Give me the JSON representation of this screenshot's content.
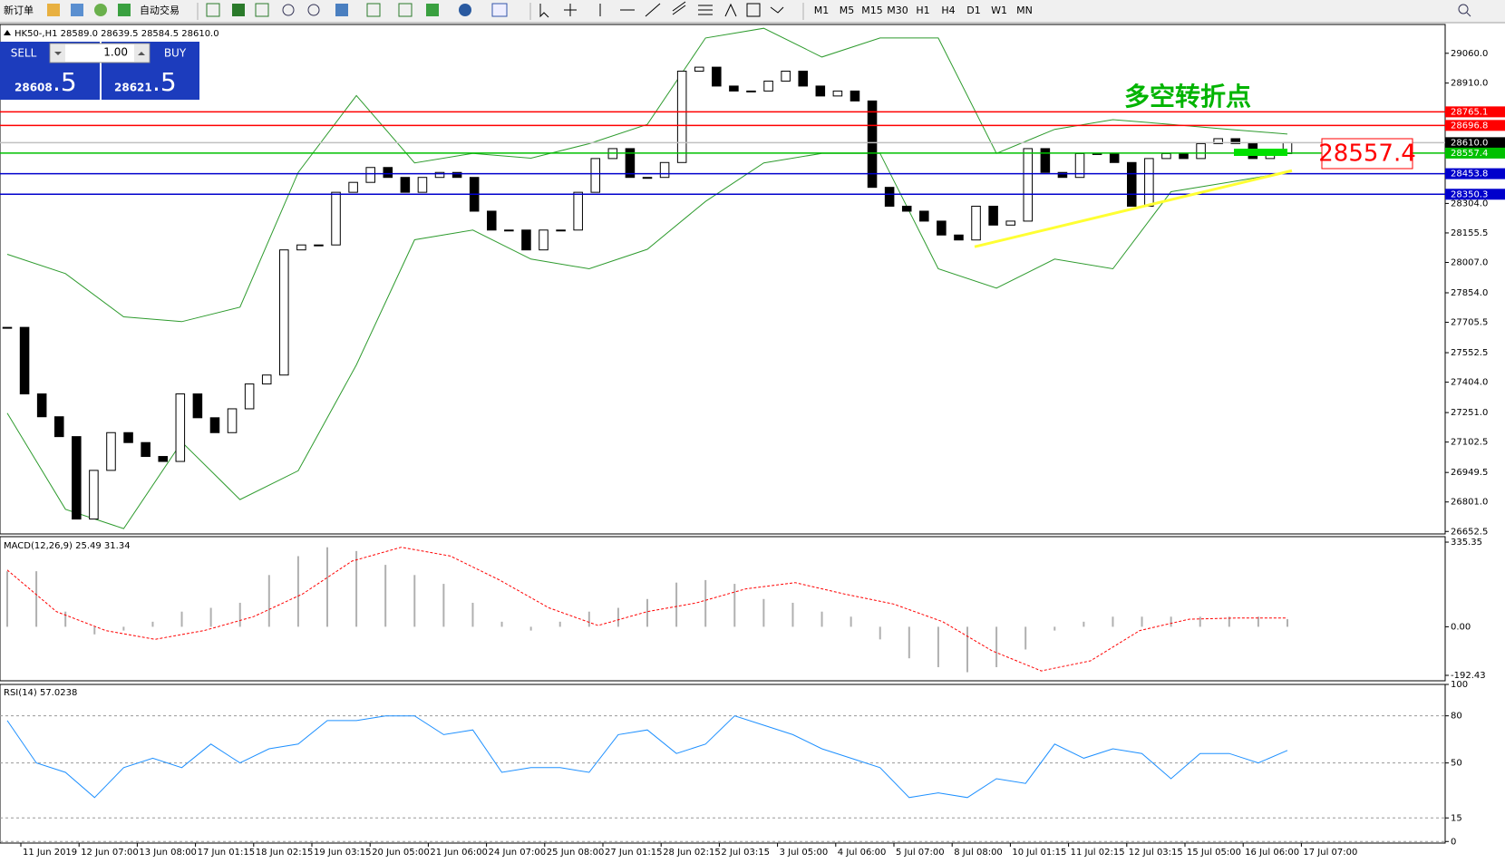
{
  "toolbar": {
    "new_order": "新订单",
    "auto_trade": "自动交易",
    "timeframes": [
      "M1",
      "M5",
      "M15",
      "M30",
      "H1",
      "H4",
      "D1",
      "W1",
      "MN"
    ]
  },
  "trade_panel": {
    "sell": "SELL",
    "buy": "BUY",
    "lot": "1.00",
    "sell_price": "28608",
    "sell_fraction": ".5",
    "buy_price": "28621",
    "buy_fraction": ".5"
  },
  "chart_data": [
    {
      "type": "candlestick",
      "title": "HK50-,H1  28589.0 28639.5 28584.5 28610.0",
      "closes": [
        27680,
        27345,
        27230,
        27130,
        26715,
        26960,
        27150,
        27100,
        27030,
        27005,
        27345,
        27225,
        27150,
        27270,
        27395,
        27440,
        28070,
        28095,
        28095,
        28360,
        28410,
        28485,
        28435,
        28360,
        28435,
        28460,
        28435,
        28265,
        28170,
        28170,
        28070,
        28170,
        28170,
        28360,
        28530,
        28580,
        28435,
        28435,
        28510,
        28970,
        28990,
        28895,
        28870,
        28870,
        28920,
        28970,
        28895,
        28845,
        28870,
        28820,
        28385,
        28290,
        28265,
        28215,
        28145,
        28120,
        28290,
        28195,
        28215,
        28580,
        28460,
        28435,
        28555,
        28555,
        28510,
        28290,
        28530,
        28555,
        28530,
        28605,
        28630,
        28605,
        28530,
        28555,
        28610
      ],
      "upper_band": [
        28048,
        27951,
        27733,
        27709,
        27782,
        28460,
        28847,
        28508,
        28556,
        28532,
        28605,
        28702,
        29137,
        29186,
        29041,
        29137,
        29137,
        28556,
        28677,
        28726,
        28702,
        28677,
        28653
      ],
      "lower_band": [
        27248,
        26764,
        26667,
        27103,
        26813,
        26958,
        27491,
        28121,
        28170,
        28024,
        27975,
        28073,
        28314,
        28508,
        28556,
        28556,
        27975,
        27878,
        28024,
        27975,
        28363,
        28411,
        28460
      ],
      "band_color": "#2e9b2e",
      "up_color": "#ffffff",
      "down_color": "#000000",
      "ylim": [
        26640,
        29205
      ],
      "yticks": [
        {
          "value": 29060,
          "label": "29060.0"
        },
        {
          "value": 28910,
          "label": "28910.0"
        },
        {
          "value": 28304,
          "label": "28304.0"
        },
        28155.5,
        {
          "value": 28007,
          "label": "28007.0"
        },
        {
          "value": 27854,
          "label": "27854.0"
        },
        27705.5,
        27552.5,
        {
          "value": 27404,
          "label": "27404.0"
        },
        {
          "value": 27251,
          "label": "27251.0"
        },
        27102.5,
        26949.5,
        {
          "value": 26801,
          "label": "26801.0"
        },
        26652.5
      ],
      "levels": [
        {
          "value": 28765.1,
          "color": "#ff0000"
        },
        {
          "value": 28696.8,
          "color": "#ff0000"
        },
        {
          "value": {
            "value": 28610,
            "label": "28610.0"
          },
          "color": "#000000"
        },
        {
          "value": 28557.4,
          "color": "#00c000"
        },
        {
          "value": 28453.8,
          "color": "#0000cc"
        },
        {
          "value": 28350.3,
          "color": "#0000cc"
        }
      ],
      "annotation": "多空转折点",
      "callout": 28557.4,
      "trendline": [
        28086,
        28469
      ],
      "trendline_color": "#ffff33",
      "x_labels": [
        "11 Jun 2019",
        "12 Jun 07:00",
        "13 Jun 08:00",
        "17 Jun 01:15",
        "18 Jun 02:15",
        "19 Jun 03:15",
        "20 Jun 05:00",
        "21 Jun 06:00",
        "24 Jun 07:00",
        "25 Jun 08:00",
        "27 Jun 01:15",
        "28 Jun 02:15",
        "2 Jul 03:15",
        "3 Jul 05:00",
        "4 Jul 06:00",
        "5 Jul 07:00",
        "8 Jul 08:00",
        "10 Jul 01:15",
        "11 Jul 02:15",
        "12 Jul 03:15",
        "15 Jul 05:00",
        "16 Jul 06:00",
        "17 Jul 07:00"
      ]
    },
    {
      "type": "macd",
      "title": "MACD(12,26,9) 25.49 31.34",
      "histogram": [
        220,
        220,
        60,
        -30,
        -15,
        20,
        60,
        75,
        95,
        205,
        280,
        315,
        300,
        245,
        205,
        170,
        95,
        20,
        -15,
        20,
        60,
        75,
        110,
        175,
        185,
        170,
        110,
        95,
        60,
        40,
        -50,
        -125,
        -160,
        -180,
        -160,
        -90,
        -15,
        20,
        40,
        40,
        40,
        40,
        40,
        40,
        30
      ],
      "signal": [
        225,
        60,
        -15,
        -50,
        -15,
        40,
        130,
        260,
        315,
        280,
        185,
        75,
        5,
        60,
        95,
        150,
        175,
        130,
        90,
        20,
        -95,
        -175,
        -135,
        -15,
        30,
        35,
        35
      ],
      "hist_color": "#b0b0b0",
      "signal_color": "#ff0000",
      "ylim": [
        -214,
        357
      ],
      "yticks": [
        335.35,
        {
          "value": 0,
          "label": "0.00"
        },
        -192.43
      ]
    },
    {
      "type": "rsi",
      "title": "RSI(14) 57.0238",
      "values": [
        77,
        50,
        44,
        28,
        47,
        53,
        47,
        62,
        50,
        59,
        62,
        77,
        77,
        80,
        80,
        68,
        71,
        44,
        47,
        47,
        44,
        68,
        71,
        56,
        62,
        80,
        74,
        68,
        59,
        53,
        47,
        28,
        31,
        28,
        40,
        37,
        62,
        53,
        59,
        56,
        40,
        56,
        56,
        50,
        58
      ],
      "color": "#1e90ff",
      "ylim": [
        -1,
        100
      ],
      "yticks": [
        100,
        80,
        50,
        15,
        0
      ]
    }
  ]
}
